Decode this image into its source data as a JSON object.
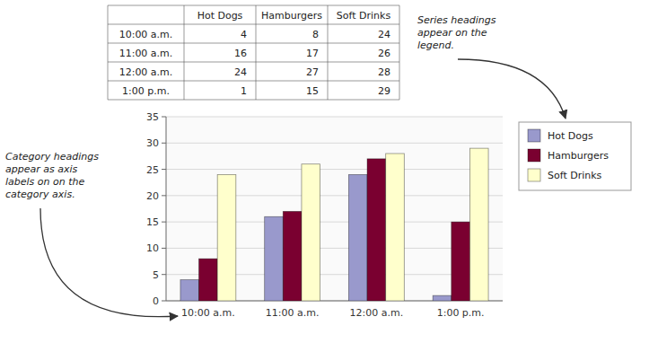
{
  "chart_data": {
    "type": "bar",
    "categories": [
      "10:00 a.m.",
      "11:00 a.m.",
      "12:00 a.m.",
      "1:00 p.m."
    ],
    "series": [
      {
        "name": "Hot Dogs",
        "color": "#9999cc",
        "values": [
          4,
          16,
          24,
          1
        ]
      },
      {
        "name": "Hamburgers",
        "color": "#7a0030",
        "values": [
          8,
          17,
          27,
          15
        ]
      },
      {
        "name": "Soft Drinks",
        "color": "#ffffcc",
        "values": [
          24,
          26,
          28,
          29
        ]
      }
    ],
    "ylim": [
      0,
      35
    ],
    "yticks": [
      0,
      5,
      10,
      15,
      20,
      25,
      30,
      35
    ],
    "grid": true,
    "legend": "right",
    "annotations": [
      "Series headings\nappear on the\nlegend.",
      "Category headings\nappear as axis\nlabels on on the\ncategory axis."
    ]
  }
}
